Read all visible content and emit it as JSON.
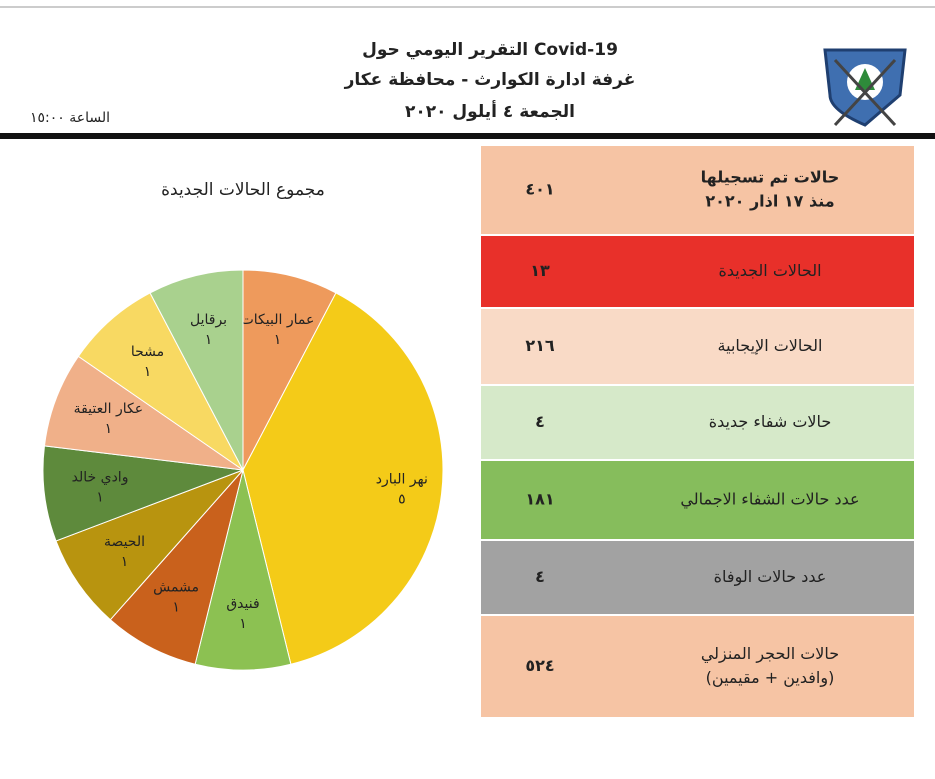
{
  "header": {
    "title_lines": [
      "التقرير اليومي حول Covid-19",
      "غرفة ادارة الكوارث - محافظة عكار",
      "الجمعة ٤ أيلول ٢٠٢٠"
    ],
    "time": "الساعة ١٥:٠٠"
  },
  "chart_data": {
    "type": "pie",
    "title": "مجموع الحالات الجديدة",
    "categories": [
      "عمار البيكات",
      "نهر البارد",
      "فنيدق",
      "مشمش",
      "الحيصة",
      "وادي خالد",
      "عكار العتيقة",
      "مشحا",
      "برقايل"
    ],
    "values": [
      1,
      5,
      1,
      1,
      1,
      1,
      1,
      1,
      1
    ],
    "value_labels": [
      "١",
      "٥",
      "١",
      "١",
      "١",
      "١",
      "١",
      "١",
      "١"
    ],
    "colors": [
      "#ee9a5c",
      "#f4cb18",
      "#8cc152",
      "#c9611c",
      "#b8940f",
      "#5e8a3c",
      "#f0b089",
      "#f8d962",
      "#a9d18e"
    ]
  },
  "table": {
    "rows": [
      {
        "label": [
          "حالات تم تسجيلها",
          "منذ ١٧ اذار ٢٠٢٠"
        ],
        "value": "٤٠١",
        "color": "#f6c4a4"
      },
      {
        "label": [
          "الحالات الجديدة"
        ],
        "value": "١٣",
        "color": "#e8302a"
      },
      {
        "label": [
          "الحالات الإيجابية"
        ],
        "value": "٢١٦",
        "color": "#f9dac6"
      },
      {
        "label": [
          "حالات شفاء جديدة"
        ],
        "value": "٤",
        "color": "#d6e9c9"
      },
      {
        "label": [
          "عدد حالات الشفاء الاجمالي"
        ],
        "value": "١٨١",
        "color": "#86bd5c"
      },
      {
        "label": [
          "عدد حالات الوفاة"
        ],
        "value": "٤",
        "color": "#a2a2a2"
      },
      {
        "label": [
          "حالات الحجر المنزلي",
          "(وافدين + مقيمين)"
        ],
        "value": "٥٢٤",
        "color": "#f6c4a4"
      }
    ]
  }
}
